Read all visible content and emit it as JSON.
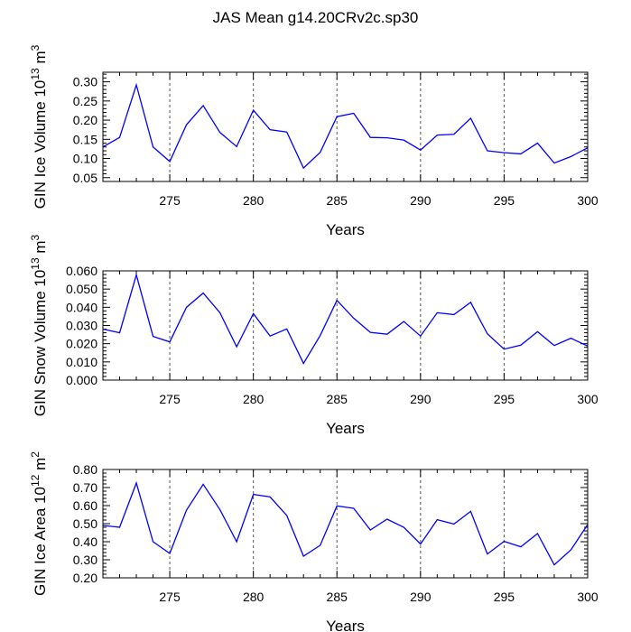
{
  "title": "JAS Mean g14.20CRv2c.sp30",
  "colors": {
    "line": "#0000ff",
    "axis": "#000000",
    "grid": "#555555"
  },
  "chart_data": [
    {
      "type": "line",
      "id": "ice-volume",
      "xlabel": "Years",
      "ylabel": {
        "main": "GIN Ice Volume 10",
        "exp": "13",
        "unit": " m",
        "unit_exp": "3"
      },
      "xlim": [
        271,
        300
      ],
      "ylim": [
        0.04,
        0.325
      ],
      "xticks": [
        275,
        280,
        285,
        290,
        295,
        300
      ],
      "yticks": [
        0.05,
        0.1,
        0.15,
        0.2,
        0.25,
        0.3
      ],
      "ytick_labels": [
        "0.05",
        "0.10",
        "0.15",
        "0.20",
        "0.25",
        "0.30"
      ],
      "vgrid": [
        275,
        280,
        285,
        290,
        295
      ],
      "x": [
        271,
        272,
        273,
        274,
        275,
        276,
        277,
        278,
        279,
        280,
        281,
        282,
        283,
        284,
        285,
        286,
        287,
        288,
        289,
        290,
        291,
        292,
        293,
        294,
        295,
        296,
        297,
        298,
        299,
        300
      ],
      "values": [
        0.13,
        0.155,
        0.292,
        0.13,
        0.092,
        0.188,
        0.238,
        0.168,
        0.131,
        0.226,
        0.175,
        0.169,
        0.075,
        0.116,
        0.209,
        0.218,
        0.155,
        0.154,
        0.148,
        0.122,
        0.161,
        0.163,
        0.205,
        0.12,
        0.115,
        0.112,
        0.14,
        0.088,
        0.105,
        0.128
      ]
    },
    {
      "type": "line",
      "id": "snow-volume",
      "xlabel": "Years",
      "ylabel": {
        "main": "GIN Snow Volume 10",
        "exp": "13",
        "unit": " m",
        "unit_exp": "3"
      },
      "xlim": [
        271,
        300
      ],
      "ylim": [
        0.0,
        0.06
      ],
      "xticks": [
        275,
        280,
        285,
        290,
        295,
        300
      ],
      "yticks": [
        0.0,
        0.01,
        0.02,
        0.03,
        0.04,
        0.05,
        0.06
      ],
      "ytick_labels": [
        "0.000",
        "0.010",
        "0.020",
        "0.030",
        "0.040",
        "0.050",
        "0.060"
      ],
      "vgrid": [
        275,
        280,
        285,
        290,
        295
      ],
      "x": [
        271,
        272,
        273,
        274,
        275,
        276,
        277,
        278,
        279,
        280,
        281,
        282,
        283,
        284,
        285,
        286,
        287,
        288,
        289,
        290,
        291,
        292,
        293,
        294,
        295,
        296,
        297,
        298,
        299,
        300
      ],
      "values": [
        0.028,
        0.026,
        0.0578,
        0.024,
        0.021,
        0.04,
        0.0478,
        0.037,
        0.0183,
        0.0365,
        0.0242,
        0.0281,
        0.0092,
        0.0245,
        0.0438,
        0.034,
        0.0262,
        0.0252,
        0.0322,
        0.0242,
        0.037,
        0.036,
        0.0427,
        0.0254,
        0.017,
        0.0192,
        0.0266,
        0.019,
        0.023,
        0.0187
      ]
    },
    {
      "type": "line",
      "id": "ice-area",
      "xlabel": "Years",
      "ylabel": {
        "main": "GIN Ice Area 10",
        "exp": "12",
        "unit": " m",
        "unit_exp": "2"
      },
      "xlim": [
        271,
        300
      ],
      "ylim": [
        0.2,
        0.8
      ],
      "xticks": [
        275,
        280,
        285,
        290,
        295,
        300
      ],
      "yticks": [
        0.2,
        0.3,
        0.4,
        0.5,
        0.6,
        0.7,
        0.8
      ],
      "ytick_labels": [
        "0.20",
        "0.30",
        "0.40",
        "0.50",
        "0.60",
        "0.70",
        "0.80"
      ],
      "vgrid": [
        275,
        280,
        285,
        290,
        295
      ],
      "x": [
        271,
        272,
        273,
        274,
        275,
        276,
        277,
        278,
        279,
        280,
        281,
        282,
        283,
        284,
        285,
        286,
        287,
        288,
        289,
        290,
        291,
        292,
        293,
        294,
        295,
        296,
        297,
        298,
        299,
        300
      ],
      "values": [
        0.49,
        0.48,
        0.725,
        0.4,
        0.335,
        0.575,
        0.718,
        0.578,
        0.4,
        0.662,
        0.648,
        0.545,
        0.32,
        0.38,
        0.598,
        0.585,
        0.465,
        0.525,
        0.48,
        0.387,
        0.522,
        0.498,
        0.568,
        0.332,
        0.402,
        0.372,
        0.445,
        0.272,
        0.355,
        0.495
      ]
    }
  ]
}
